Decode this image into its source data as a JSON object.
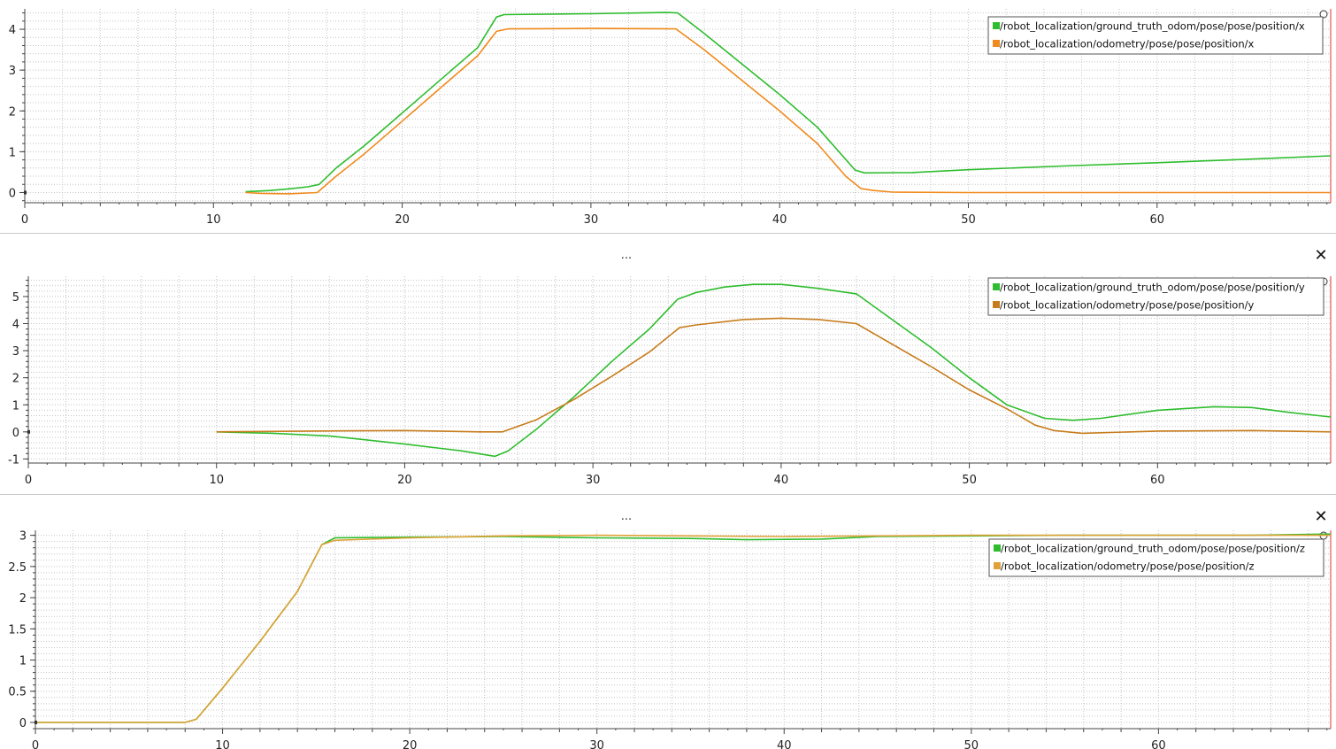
{
  "plots": [
    {
      "panel_label": "",
      "chart_data": {
        "type": "line",
        "xlim": [
          0,
          69.2
        ],
        "ylim": [
          -0.25,
          4.5
        ],
        "x_ticks": [
          0,
          10,
          20,
          30,
          40,
          50,
          60
        ],
        "y_ticks": [
          0,
          1,
          2,
          3,
          4
        ],
        "grid": true,
        "legend_position": "top-right",
        "series": [
          {
            "name": "/robot_localization/ground_truth_odom/pose/pose/position/x",
            "color": "#2ebd2e",
            "points": [
              [
                11.7,
                0.02
              ],
              [
                13,
                0.05
              ],
              [
                14,
                0.09
              ],
              [
                15,
                0.14
              ],
              [
                15.6,
                0.2
              ],
              [
                16.5,
                0.6
              ],
              [
                18,
                1.15
              ],
              [
                20,
                1.95
              ],
              [
                22,
                2.75
              ],
              [
                24,
                3.55
              ],
              [
                25,
                4.3
              ],
              [
                25.4,
                4.36
              ],
              [
                30,
                4.38
              ],
              [
                34,
                4.41
              ],
              [
                34.6,
                4.4
              ],
              [
                36,
                3.9
              ],
              [
                38,
                3.15
              ],
              [
                40,
                2.4
              ],
              [
                42,
                1.6
              ],
              [
                44,
                0.55
              ],
              [
                44.5,
                0.48
              ],
              [
                47,
                0.49
              ],
              [
                50,
                0.56
              ],
              [
                55,
                0.65
              ],
              [
                60,
                0.73
              ],
              [
                65,
                0.82
              ],
              [
                69.2,
                0.9
              ]
            ]
          },
          {
            "name": "/robot_localization/odometry/pose/pose/position/x",
            "color": "#f08a1c",
            "points": [
              [
                11.7,
                0
              ],
              [
                12.5,
                -0.02
              ],
              [
                14,
                -0.03
              ],
              [
                15.5,
                0.0
              ],
              [
                16.5,
                0.4
              ],
              [
                18,
                0.95
              ],
              [
                20,
                1.75
              ],
              [
                22,
                2.55
              ],
              [
                24,
                3.35
              ],
              [
                25,
                3.95
              ],
              [
                25.6,
                4.01
              ],
              [
                30,
                4.02
              ],
              [
                34.5,
                4.01
              ],
              [
                36,
                3.5
              ],
              [
                38,
                2.75
              ],
              [
                40,
                2.0
              ],
              [
                42,
                1.2
              ],
              [
                43.5,
                0.4
              ],
              [
                44.3,
                0.1
              ],
              [
                45,
                0.05
              ],
              [
                46,
                0.01
              ],
              [
                50,
                0.0
              ],
              [
                60,
                0.0
              ],
              [
                69.2,
                0.0
              ]
            ]
          }
        ]
      }
    },
    {
      "panel_label": "...",
      "chart_data": {
        "type": "line",
        "xlim": [
          0,
          69.2
        ],
        "ylim": [
          -1.15,
          5.75
        ],
        "x_ticks": [
          0,
          10,
          20,
          30,
          40,
          50,
          60
        ],
        "y_ticks": [
          -1,
          0,
          1,
          2,
          3,
          4,
          5
        ],
        "grid": true,
        "legend_position": "top-right",
        "series": [
          {
            "name": "/robot_localization/ground_truth_odom/pose/pose/position/y",
            "color": "#2ebd2e",
            "points": [
              [
                10,
                0.0
              ],
              [
                13,
                -0.05
              ],
              [
                16,
                -0.15
              ],
              [
                20,
                -0.45
              ],
              [
                23,
                -0.7
              ],
              [
                24.8,
                -0.9
              ],
              [
                25.5,
                -0.7
              ],
              [
                27,
                0.1
              ],
              [
                29,
                1.3
              ],
              [
                31,
                2.6
              ],
              [
                33,
                3.8
              ],
              [
                34.5,
                4.9
              ],
              [
                35.5,
                5.15
              ],
              [
                37,
                5.35
              ],
              [
                38.5,
                5.45
              ],
              [
                40,
                5.45
              ],
              [
                42,
                5.3
              ],
              [
                44,
                5.1
              ],
              [
                46,
                4.1
              ],
              [
                48,
                3.1
              ],
              [
                50,
                2.0
              ],
              [
                52,
                1.0
              ],
              [
                54,
                0.5
              ],
              [
                55.5,
                0.43
              ],
              [
                57,
                0.5
              ],
              [
                60,
                0.8
              ],
              [
                63,
                0.93
              ],
              [
                65,
                0.9
              ],
              [
                67,
                0.72
              ],
              [
                69.2,
                0.55
              ]
            ]
          },
          {
            "name": "/robot_localization/odometry/pose/pose/position/y",
            "color": "#c77c1c",
            "points": [
              [
                10,
                0.0
              ],
              [
                15,
                0.03
              ],
              [
                20,
                0.05
              ],
              [
                24,
                0.0
              ],
              [
                25.2,
                0.0
              ],
              [
                27,
                0.45
              ],
              [
                29,
                1.2
              ],
              [
                31,
                2.05
              ],
              [
                33,
                2.95
              ],
              [
                34.6,
                3.85
              ],
              [
                35.5,
                3.95
              ],
              [
                38,
                4.15
              ],
              [
                40,
                4.2
              ],
              [
                42,
                4.15
              ],
              [
                44,
                4.0
              ],
              [
                46,
                3.2
              ],
              [
                48,
                2.4
              ],
              [
                50,
                1.55
              ],
              [
                52,
                0.85
              ],
              [
                53.5,
                0.25
              ],
              [
                54.5,
                0.05
              ],
              [
                56,
                -0.05
              ],
              [
                60,
                0.03
              ],
              [
                65,
                0.05
              ],
              [
                69.2,
                0.0
              ]
            ]
          }
        ]
      }
    },
    {
      "panel_label": "...",
      "chart_data": {
        "type": "line",
        "xlim": [
          0,
          69.2
        ],
        "ylim": [
          -0.1,
          3.08
        ],
        "x_ticks": [
          0,
          10,
          20,
          30,
          40,
          50,
          60
        ],
        "y_ticks": [
          0,
          0.5,
          1,
          1.5,
          2,
          2.5,
          3
        ],
        "grid": true,
        "legend_position": "top-right",
        "series": [
          {
            "name": "/robot_localization/ground_truth_odom/pose/pose/position/z",
            "color": "#2ebd2e",
            "points": [
              [
                0,
                0
              ],
              [
                8,
                0
              ],
              [
                8.6,
                0.05
              ],
              [
                10,
                0.55
              ],
              [
                12,
                1.3
              ],
              [
                14,
                2.1
              ],
              [
                15.3,
                2.85
              ],
              [
                16,
                2.96
              ],
              [
                20,
                2.97
              ],
              [
                25,
                2.98
              ],
              [
                30,
                2.96
              ],
              [
                35,
                2.95
              ],
              [
                38,
                2.93
              ],
              [
                42,
                2.94
              ],
              [
                45,
                2.98
              ],
              [
                50,
                2.99
              ],
              [
                55,
                3.0
              ],
              [
                60,
                3.0
              ],
              [
                65,
                3.0
              ],
              [
                69.2,
                3.02
              ]
            ]
          },
          {
            "name": "/robot_localization/odometry/pose/pose/position/z",
            "color": "#e0a238",
            "points": [
              [
                0,
                0
              ],
              [
                8,
                0
              ],
              [
                8.6,
                0.05
              ],
              [
                10,
                0.55
              ],
              [
                12,
                1.3
              ],
              [
                14,
                2.1
              ],
              [
                15.3,
                2.85
              ],
              [
                16,
                2.92
              ],
              [
                20,
                2.96
              ],
              [
                25,
                2.99
              ],
              [
                30,
                3.0
              ],
              [
                35,
                2.99
              ],
              [
                40,
                2.98
              ],
              [
                45,
                2.99
              ],
              [
                50,
                3.0
              ],
              [
                55,
                3.0
              ],
              [
                60,
                3.0
              ],
              [
                65,
                3.0
              ],
              [
                69.2,
                3.0
              ]
            ]
          }
        ]
      }
    }
  ],
  "close_glyph": "✕"
}
